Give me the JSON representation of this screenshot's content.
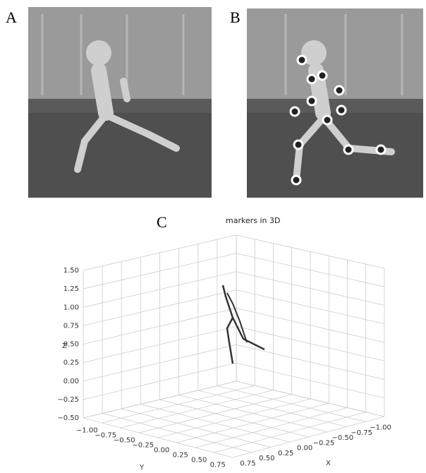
{
  "panels": {
    "a": {
      "label": "A"
    },
    "b": {
      "label": "B"
    },
    "c": {
      "label": "C"
    }
  },
  "plot": {
    "title": "markers in 3D",
    "z_label": "Z",
    "y_label": "Y",
    "x_label": "X",
    "z_ticks": [
      "1.50",
      "1.25",
      "1.00",
      "0.75",
      "0.50",
      "0.25",
      "0.00",
      "−0.25",
      "−0.50"
    ],
    "y_ticks": [
      "−1.00",
      "−0.75",
      "−0.50",
      "−0.25",
      "0.00",
      "0.25",
      "0.50",
      "0.75"
    ],
    "x_ticks": [
      "0.75",
      "0.50",
      "0.25",
      "0.00",
      "−0.25",
      "−0.50",
      "−0.75",
      "−1.00"
    ]
  }
}
